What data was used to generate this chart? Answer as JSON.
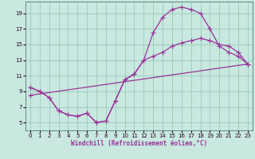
{
  "xlabel": "Windchill (Refroidissement éolien,°C)",
  "ylabel": "",
  "bg_color": "#c8e8e0",
  "grid_color": "#99ccbb",
  "line_color": "#993399",
  "marker": "+",
  "markersize": 4,
  "linewidth": 0.9,
  "xlim": [
    -0.5,
    23.5
  ],
  "ylim": [
    4.0,
    20.5
  ],
  "xticks": [
    0,
    1,
    2,
    3,
    4,
    5,
    6,
    7,
    8,
    9,
    10,
    11,
    12,
    13,
    14,
    15,
    16,
    17,
    18,
    19,
    20,
    21,
    22,
    23
  ],
  "yticks": [
    5,
    7,
    9,
    11,
    13,
    15,
    17,
    19
  ],
  "tick_fontsize": 5,
  "xlabel_fontsize": 5.5,
  "curves": [
    {
      "x": [
        0,
        1,
        2,
        3,
        4,
        5,
        6,
        7,
        8,
        9,
        10,
        11,
        12,
        13,
        14,
        15,
        16,
        17,
        18,
        19,
        20,
        21,
        22,
        23
      ],
      "y": [
        9.5,
        9.0,
        8.2,
        6.5,
        6.0,
        5.8,
        6.2,
        5.0,
        5.2,
        7.8,
        10.5,
        11.2,
        13.0,
        16.5,
        18.5,
        19.5,
        19.8,
        19.5,
        19.0,
        17.0,
        14.8,
        14.0,
        13.5,
        12.5
      ]
    },
    {
      "x": [
        0,
        1,
        2,
        3,
        4,
        5,
        6,
        7,
        8,
        9,
        10,
        11,
        12,
        13,
        14,
        15,
        16,
        17,
        18,
        19,
        20,
        21,
        22,
        23
      ],
      "y": [
        9.5,
        9.0,
        8.2,
        6.5,
        6.0,
        5.8,
        6.2,
        5.0,
        5.2,
        7.8,
        10.5,
        11.2,
        13.0,
        13.5,
        14.0,
        14.8,
        15.2,
        15.5,
        15.8,
        15.5,
        15.0,
        14.8,
        14.0,
        12.5
      ]
    },
    {
      "x": [
        0,
        23
      ],
      "y": [
        8.5,
        12.5
      ]
    }
  ]
}
